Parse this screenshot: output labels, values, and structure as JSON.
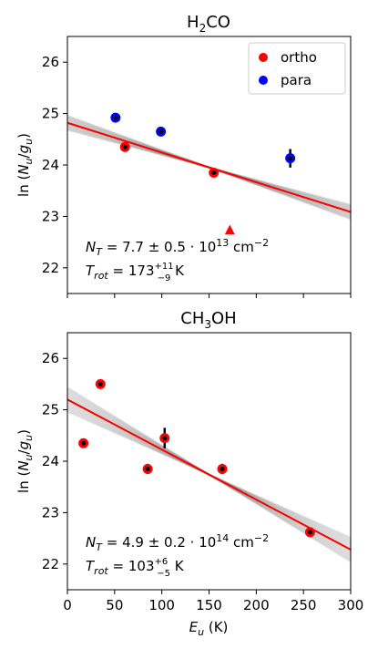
{
  "chart_data": [
    {
      "type": "scatter",
      "title": "H₂CO",
      "title_base": "H",
      "title_sub": "2",
      "title_tail": "CO",
      "ylabel": "ln (N_u/g_u)",
      "xlim": [
        0,
        300
      ],
      "ylim": [
        21.5,
        26.5
      ],
      "yticks": [
        22,
        23,
        24,
        25,
        26
      ],
      "grid": false,
      "legend": {
        "placement": "top-right",
        "entries": [
          {
            "label": "ortho",
            "color": "#ff0000"
          },
          {
            "label": "para",
            "color": "#0000ff"
          }
        ]
      },
      "series": [
        {
          "name": "ortho",
          "color": "#ff0000",
          "points": [
            {
              "x": 61,
              "y": 24.35,
              "err": 0.05
            },
            {
              "x": 155,
              "y": 23.85,
              "err": 0.05
            }
          ]
        },
        {
          "name": "para",
          "color": "#0000ff",
          "points": [
            {
              "x": 51,
              "y": 24.92,
              "err": 0.05
            },
            {
              "x": 99,
              "y": 24.65,
              "err": 0.05
            },
            {
              "x": 236,
              "y": 24.13,
              "err": 0.18
            }
          ]
        }
      ],
      "upper_limits": [
        {
          "x": 172,
          "y": 22.73,
          "color": "#ff0000"
        }
      ],
      "fit": {
        "intercept": 24.82,
        "slope": -0.00578,
        "color": "#ff0000"
      },
      "annotation": {
        "nt_prefix": "N",
        "nt_sub": "T",
        "nt_value": " = 7.7 ± 0.5 · 10",
        "nt_exp": "13",
        "nt_unit": " cm",
        "nt_unit_exp": "−2",
        "trot_prefix": "T",
        "trot_sub": "rot",
        "trot_value": " = 173",
        "trot_up": "+11",
        "trot_down": "−9",
        "trot_unit": " K"
      }
    },
    {
      "type": "scatter",
      "title": "CH₃OH",
      "title_base": "CH",
      "title_sub": "3",
      "title_tail": "OH",
      "ylabel": "ln (N_u/g_u)",
      "xlabel": "E_u (K)",
      "xlim": [
        0,
        300
      ],
      "ylim": [
        21.5,
        26.5
      ],
      "xticks": [
        0,
        50,
        100,
        150,
        200,
        250,
        300
      ],
      "yticks": [
        22,
        23,
        24,
        25,
        26
      ],
      "grid": false,
      "series": [
        {
          "name": "",
          "color": "#ff0000",
          "points": [
            {
              "x": 17,
              "y": 24.35,
              "err": 0.05
            },
            {
              "x": 35,
              "y": 25.5,
              "err": 0.05
            },
            {
              "x": 85,
              "y": 23.85,
              "err": 0.1
            },
            {
              "x": 103,
              "y": 24.45,
              "err": 0.2
            },
            {
              "x": 164,
              "y": 23.85,
              "err": 0.1
            },
            {
              "x": 257,
              "y": 22.62,
              "err": 0.03
            }
          ]
        }
      ],
      "fit": {
        "intercept": 25.2,
        "slope": -0.00973,
        "color": "#ff0000"
      },
      "annotation": {
        "nt_prefix": "N",
        "nt_sub": "T",
        "nt_value": " = 4.9 ± 0.2 · 10",
        "nt_exp": "14",
        "nt_unit": " cm",
        "nt_unit_exp": "−2",
        "trot_prefix": "T",
        "trot_sub": "rot",
        "trot_value": " = 103",
        "trot_up": "+6",
        "trot_down": "−5",
        "trot_unit": " K"
      }
    }
  ]
}
